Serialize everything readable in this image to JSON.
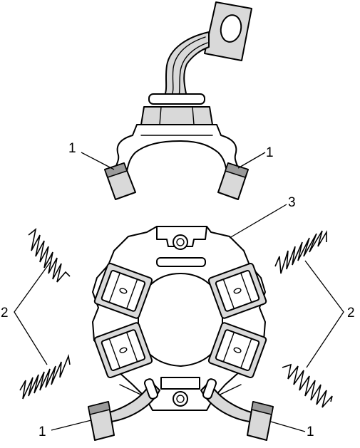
{
  "callouts": {
    "brush": "1",
    "spring": "2",
    "holder": "3"
  }
}
